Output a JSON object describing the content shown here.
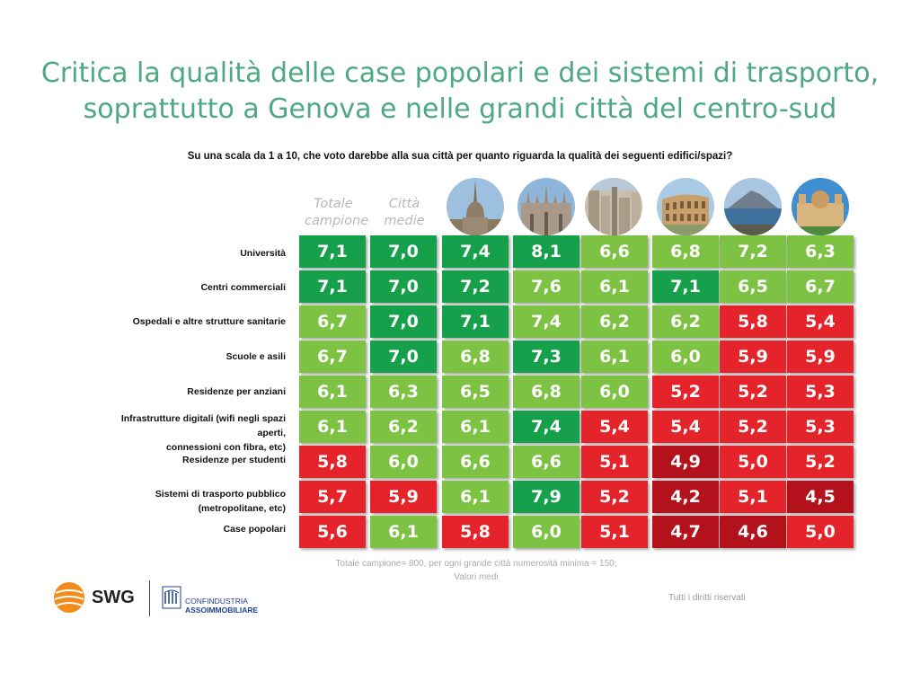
{
  "title_line1": "Critica la qualità delle case popolari e dei sistemi di trasporto,",
  "title_line2": "soprattutto a Genova e nelle grandi città del centro-sud",
  "question": "Su una scala da 1 a 10, che voto darebbe alla sua città per quanto riguarda la qualità dei seguenti edifici/spazi?",
  "colors": {
    "dark_green": "#17a04c",
    "light_green": "#7dc242",
    "red": "#e5232b",
    "dark_red": "#b3121d",
    "title": "#4ea882"
  },
  "chart_data": {
    "type": "table",
    "columns": [
      "Totale campione",
      "Città medie",
      "torino-icon",
      "milano-icon",
      "genova-icon",
      "roma-icon",
      "napoli-icon",
      "palermo-icon"
    ],
    "column_headers": {
      "totale": "Totale campione",
      "medie": "Città medie"
    },
    "rows": [
      {
        "label": "Università",
        "values": [
          "7,1",
          "7,0",
          "7,4",
          "8,1",
          "6,6",
          "6,8",
          "7,2",
          "6,3"
        ],
        "levels": [
          "dg",
          "dg",
          "dg",
          "dg",
          "lg",
          "lg",
          "lg",
          "lg"
        ]
      },
      {
        "label": "Centri commerciali",
        "values": [
          "7,1",
          "7,0",
          "7,2",
          "7,6",
          "6,1",
          "7,1",
          "6,5",
          "6,7"
        ],
        "levels": [
          "dg",
          "dg",
          "dg",
          "lg",
          "lg",
          "dg",
          "lg",
          "lg"
        ]
      },
      {
        "label": "Ospedali e altre strutture sanitarie",
        "values": [
          "6,7",
          "7,0",
          "7,1",
          "7,4",
          "6,2",
          "6,2",
          "5,8",
          "5,4"
        ],
        "levels": [
          "lg",
          "dg",
          "dg",
          "lg",
          "lg",
          "lg",
          "r",
          "r"
        ]
      },
      {
        "label": "Scuole e asili",
        "values": [
          "6,7",
          "7,0",
          "6,8",
          "7,3",
          "6,1",
          "6,0",
          "5,9",
          "5,9"
        ],
        "levels": [
          "lg",
          "dg",
          "lg",
          "dg",
          "lg",
          "lg",
          "r",
          "r"
        ]
      },
      {
        "label": "Residenze per anziani",
        "values": [
          "6,1",
          "6,3",
          "6,5",
          "6,8",
          "6,0",
          "5,2",
          "5,2",
          "5,3"
        ],
        "levels": [
          "lg",
          "lg",
          "lg",
          "lg",
          "lg",
          "r",
          "r",
          "r"
        ]
      },
      {
        "label": "Infrastrutture digitali (wifi negli spazi aperti, connessioni con fibra, etc)",
        "label_line1": "Infrastrutture digitali (wifi negli spazi aperti,",
        "label_line2": "connessioni con fibra, etc)",
        "values": [
          "6,1",
          "6,2",
          "6,1",
          "7,4",
          "5,4",
          "5,4",
          "5,2",
          "5,3"
        ],
        "levels": [
          "lg",
          "lg",
          "lg",
          "dg",
          "r",
          "r",
          "r",
          "r"
        ]
      },
      {
        "label": "Residenze per studenti",
        "values": [
          "5,8",
          "6,0",
          "6,6",
          "6,6",
          "5,1",
          "4,9",
          "5,0",
          "5,2"
        ],
        "levels": [
          "r",
          "lg",
          "lg",
          "lg",
          "r",
          "dr",
          "r",
          "r"
        ]
      },
      {
        "label": "Sistemi di trasporto pubblico (metropolitane, etc)",
        "values": [
          "5,7",
          "5,9",
          "6,1",
          "7,9",
          "5,2",
          "4,2",
          "5,1",
          "4,5"
        ],
        "levels": [
          "r",
          "r",
          "lg",
          "dg",
          "r",
          "dr",
          "r",
          "dr"
        ]
      },
      {
        "label": "Case popolari",
        "values": [
          "5,6",
          "6,1",
          "5,8",
          "6,0",
          "5,1",
          "4,7",
          "4,6",
          "5,0"
        ],
        "levels": [
          "r",
          "lg",
          "r",
          "lg",
          "r",
          "dr",
          "dr",
          "r"
        ]
      }
    ]
  },
  "note_line1": "Totale campione= 800, per ogni grande città numerosità minima = 150;",
  "note_line2": "Valori medi",
  "rights": "Tutti i diritti riservati",
  "logos": {
    "swg": "SWG",
    "conf_line1": "CONFINDUSTRIA",
    "conf_line2": "ASSOIMMOBILIARE"
  }
}
